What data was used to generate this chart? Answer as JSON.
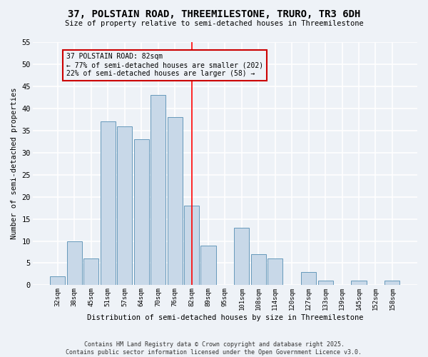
{
  "title": "37, POLSTAIN ROAD, THREEMILESTONE, TRURO, TR3 6DH",
  "subtitle": "Size of property relative to semi-detached houses in Threemilestone",
  "xlabel": "Distribution of semi-detached houses by size in Threemilestone",
  "ylabel": "Number of semi-detached properties",
  "categories": [
    "32sqm",
    "38sqm",
    "45sqm",
    "51sqm",
    "57sqm",
    "64sqm",
    "70sqm",
    "76sqm",
    "82sqm",
    "89sqm",
    "95sqm",
    "101sqm",
    "108sqm",
    "114sqm",
    "120sqm",
    "127sqm",
    "133sqm",
    "139sqm",
    "145sqm",
    "152sqm",
    "158sqm"
  ],
  "values": [
    2,
    10,
    6,
    37,
    36,
    33,
    43,
    38,
    18,
    9,
    0,
    13,
    7,
    6,
    0,
    3,
    1,
    0,
    1,
    0,
    1
  ],
  "bar_color": "#c8d8e8",
  "bar_edge_color": "#6699bb",
  "pct_smaller": 77,
  "count_smaller": 202,
  "pct_larger": 22,
  "count_larger": 58,
  "vline_x_index": 8,
  "ylim": [
    0,
    55
  ],
  "yticks": [
    0,
    5,
    10,
    15,
    20,
    25,
    30,
    35,
    40,
    45,
    50,
    55
  ],
  "footer": "Contains HM Land Registry data © Crown copyright and database right 2025.\nContains public sector information licensed under the Open Government Licence v3.0.",
  "bg_color": "#eef2f7",
  "grid_color": "#ffffff",
  "annotation_box_color": "#cc0000",
  "ann_text_line1": "37 POLSTAIN ROAD: 82sqm",
  "ann_text_line2": "← 77% of semi-detached houses are smaller (202)",
  "ann_text_line3": "22% of semi-detached houses are larger (58) →"
}
